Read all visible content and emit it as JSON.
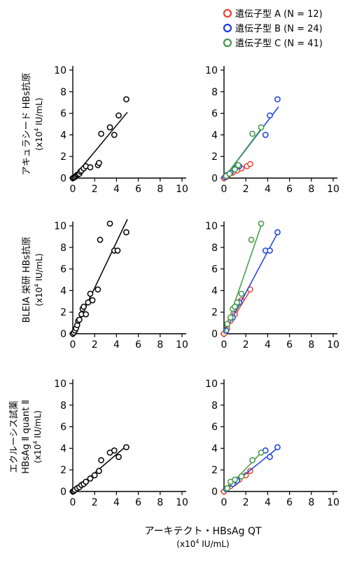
{
  "legend": {
    "placement": "top-right",
    "entries": [
      {
        "label": "遺伝子型 A (N = 12)",
        "color": "#e8432c"
      },
      {
        "label": "遺伝子型 B (N = 24)",
        "color": "#1a3fe0"
      },
      {
        "label": "遺伝子型 C (N = 41)",
        "color": "#3e9a45"
      }
    ]
  },
  "x_axis_label": {
    "line1": "アーキテクト・HBsAg QT",
    "line2": "(x10",
    "sup": "4",
    "line2_tail": " IU/mL)"
  },
  "rows": [
    {
      "ylabel_lines": [
        "アキュラシード HBs抗原"
      ],
      "ylabel_unit": {
        "pre": "(x10",
        "sup": "4",
        "post": " IU/mL)"
      }
    },
    {
      "ylabel_lines": [
        "BLEIA 栄研 HBs抗原"
      ],
      "ylabel_unit": {
        "pre": "(x10",
        "sup": "4",
        "post": " IU/mL)"
      }
    },
    {
      "ylabel_lines": [
        "エクルーシス試薬",
        "HBsAg Ⅱ quant Ⅱ"
      ],
      "ylabel_unit": {
        "pre": "(x10",
        "sup": "4",
        "post": " IU/mL)"
      }
    }
  ],
  "chart_data": [
    {
      "type": "scatter",
      "row": 1,
      "col": 1,
      "xlim": [
        0,
        10
      ],
      "ylim": [
        0,
        10
      ],
      "xticks": [
        0,
        2,
        4,
        6,
        8,
        10
      ],
      "yticks": [
        0,
        2,
        4,
        6,
        8,
        10
      ],
      "color": "#000000",
      "points": [
        [
          0,
          0
        ],
        [
          0.1,
          0.05
        ],
        [
          0.2,
          0.1
        ],
        [
          0.3,
          0.2
        ],
        [
          0.4,
          0.3
        ],
        [
          0.5,
          0.35
        ],
        [
          0.6,
          0.4
        ],
        [
          0.7,
          0.6
        ],
        [
          0.8,
          0.7
        ],
        [
          1.0,
          0.9
        ],
        [
          1.2,
          1.1
        ],
        [
          1.6,
          1.0
        ],
        [
          2.3,
          1.2
        ],
        [
          2.4,
          1.4
        ],
        [
          2.6,
          4.1
        ],
        [
          3.4,
          4.7
        ],
        [
          3.8,
          4.0
        ],
        [
          4.2,
          5.8
        ],
        [
          4.9,
          7.3
        ]
      ],
      "fit_lines": [
        {
          "x": [
            0,
            5
          ],
          "y": [
            0,
            6.1
          ],
          "color": "#000000"
        }
      ]
    },
    {
      "type": "scatter",
      "row": 1,
      "col": 2,
      "xlim": [
        0,
        10
      ],
      "ylim": [
        0,
        10
      ],
      "xticks": [
        0,
        2,
        4,
        6,
        8,
        10
      ],
      "yticks": [
        0,
        2,
        4,
        6,
        8,
        10
      ],
      "series": [
        {
          "name": "遺伝子型 A",
          "color": "#e8432c",
          "points": [
            [
              0,
              0
            ],
            [
              0.2,
              0.1
            ],
            [
              0.4,
              0.3
            ],
            [
              0.8,
              0.5
            ],
            [
              1.2,
              0.7
            ],
            [
              1.6,
              0.9
            ],
            [
              2.1,
              1.1
            ],
            [
              2.4,
              1.3
            ]
          ],
          "fit": {
            "x": [
              0,
              2.5
            ],
            "y": [
              0,
              1.3
            ]
          }
        },
        {
          "name": "遺伝子型 B",
          "color": "#1a3fe0",
          "points": [
            [
              0.1,
              0.1
            ],
            [
              0.3,
              0.3
            ],
            [
              0.6,
              0.5
            ],
            [
              1.0,
              0.9
            ],
            [
              1.4,
              1.1
            ],
            [
              3.8,
              4.0
            ],
            [
              4.2,
              5.8
            ],
            [
              4.9,
              7.3
            ]
          ],
          "fit": {
            "x": [
              0,
              5
            ],
            "y": [
              0,
              6.6
            ]
          }
        },
        {
          "name": "遺伝子型 C",
          "color": "#3e9a45",
          "points": [
            [
              0.2,
              0.2
            ],
            [
              0.5,
              0.4
            ],
            [
              1.0,
              0.8
            ],
            [
              1.3,
              1.2
            ],
            [
              2.6,
              4.1
            ],
            [
              3.4,
              4.7
            ]
          ],
          "fit": {
            "x": [
              0,
              3.5
            ],
            "y": [
              0,
              4.7
            ]
          }
        }
      ]
    },
    {
      "type": "scatter",
      "row": 2,
      "col": 1,
      "xlim": [
        0,
        10
      ],
      "ylim": [
        0,
        10
      ],
      "xticks": [
        0,
        2,
        4,
        6,
        8,
        10
      ],
      "yticks": [
        0,
        2,
        4,
        6,
        8,
        10
      ],
      "color": "#000000",
      "points": [
        [
          0,
          0
        ],
        [
          0.1,
          0.1
        ],
        [
          0.2,
          0.3
        ],
        [
          0.3,
          0.5
        ],
        [
          0.4,
          0.8
        ],
        [
          0.5,
          1.2
        ],
        [
          0.6,
          1.3
        ],
        [
          0.8,
          1.8
        ],
        [
          0.9,
          2.3
        ],
        [
          1.0,
          2.5
        ],
        [
          1.2,
          1.8
        ],
        [
          1.4,
          2.9
        ],
        [
          1.6,
          3.7
        ],
        [
          1.8,
          3.1
        ],
        [
          2.3,
          4.1
        ],
        [
          2.5,
          8.7
        ],
        [
          3.4,
          10.2
        ],
        [
          3.8,
          7.7
        ],
        [
          4.1,
          7.7
        ],
        [
          4.9,
          9.4
        ]
      ],
      "fit_lines": [
        {
          "x": [
            0,
            5
          ],
          "y": [
            0,
            10.6
          ],
          "color": "#000000"
        }
      ]
    },
    {
      "type": "scatter",
      "row": 2,
      "col": 2,
      "xlim": [
        0,
        10
      ],
      "ylim": [
        0,
        10
      ],
      "xticks": [
        0,
        2,
        4,
        6,
        8,
        10
      ],
      "yticks": [
        0,
        2,
        4,
        6,
        8,
        10
      ],
      "series": [
        {
          "name": "遺伝子型 A",
          "color": "#e8432c",
          "points": [
            [
              0,
              0
            ],
            [
              0.3,
              0.5
            ],
            [
              0.6,
              1.2
            ],
            [
              1.0,
              1.8
            ],
            [
              1.6,
              3.1
            ],
            [
              2.4,
              4.1
            ]
          ],
          "fit": {
            "x": [
              0,
              2.5
            ],
            "y": [
              0,
              4.2
            ]
          }
        },
        {
          "name": "遺伝子型 B",
          "color": "#1a3fe0",
          "points": [
            [
              0.2,
              0.3
            ],
            [
              0.8,
              1.5
            ],
            [
              1.4,
              2.9
            ],
            [
              3.8,
              7.7
            ],
            [
              4.2,
              7.7
            ],
            [
              4.9,
              9.4
            ]
          ],
          "fit": {
            "x": [
              0,
              5
            ],
            "y": [
              0,
              9.5
            ]
          }
        },
        {
          "name": "遺伝子型 C",
          "color": "#3e9a45",
          "points": [
            [
              0.3,
              0.9
            ],
            [
              0.6,
              1.5
            ],
            [
              0.8,
              2.3
            ],
            [
              1.0,
              2.5
            ],
            [
              1.2,
              2.9
            ],
            [
              1.6,
              3.7
            ],
            [
              2.5,
              8.7
            ],
            [
              3.4,
              10.2
            ]
          ],
          "fit": {
            "x": [
              0,
              3.5
            ],
            "y": [
              0,
              10.3
            ]
          }
        }
      ]
    },
    {
      "type": "scatter",
      "row": 3,
      "col": 1,
      "xlim": [
        0,
        10
      ],
      "ylim": [
        0,
        10
      ],
      "xticks": [
        0,
        2,
        4,
        6,
        8,
        10
      ],
      "yticks": [
        0,
        2,
        4,
        6,
        8,
        10
      ],
      "color": "#000000",
      "points": [
        [
          0,
          0
        ],
        [
          0.1,
          0.05
        ],
        [
          0.2,
          0.15
        ],
        [
          0.4,
          0.3
        ],
        [
          0.6,
          0.4
        ],
        [
          0.8,
          0.6
        ],
        [
          1.0,
          0.7
        ],
        [
          1.2,
          0.9
        ],
        [
          1.6,
          1.2
        ],
        [
          2.0,
          1.5
        ],
        [
          2.4,
          1.9
        ],
        [
          2.6,
          2.9
        ],
        [
          3.4,
          3.6
        ],
        [
          3.8,
          3.8
        ],
        [
          4.2,
          3.2
        ],
        [
          4.9,
          4.1
        ]
      ],
      "fit_lines": [
        {
          "x": [
            0,
            5
          ],
          "y": [
            0,
            4.3
          ],
          "color": "#000000"
        }
      ]
    },
    {
      "type": "scatter",
      "row": 3,
      "col": 2,
      "xlim": [
        0,
        10
      ],
      "ylim": [
        0,
        10
      ],
      "xticks": [
        0,
        2,
        4,
        6,
        8,
        10
      ],
      "yticks": [
        0,
        2,
        4,
        6,
        8,
        10
      ],
      "series": [
        {
          "name": "遺伝子型 A",
          "color": "#e8432c",
          "points": [
            [
              0,
              0
            ],
            [
              0.3,
              0.3
            ],
            [
              0.6,
              0.5
            ],
            [
              1.0,
              0.8
            ],
            [
              1.4,
              1.1
            ],
            [
              2.0,
              1.5
            ],
            [
              2.4,
              1.9
            ]
          ],
          "fit": {
            "x": [
              0,
              2.5
            ],
            "y": [
              0,
              1.9
            ]
          }
        },
        {
          "name": "遺伝子型 B",
          "color": "#1a3fe0",
          "points": [
            [
              0.2,
              0.2
            ],
            [
              0.8,
              0.7
            ],
            [
              1.2,
              1.0
            ],
            [
              3.8,
              3.8
            ],
            [
              4.2,
              3.2
            ],
            [
              4.9,
              4.1
            ]
          ],
          "fit": {
            "x": [
              0,
              5
            ],
            "y": [
              0,
              4.1
            ]
          }
        },
        {
          "name": "遺伝子型 C",
          "color": "#3e9a45",
          "points": [
            [
              0.3,
              0.3
            ],
            [
              0.6,
              0.9
            ],
            [
              1.0,
              1.1
            ],
            [
              1.6,
              1.4
            ],
            [
              2.6,
              2.9
            ],
            [
              3.4,
              3.6
            ]
          ],
          "fit": {
            "x": [
              0,
              3.5
            ],
            "y": [
              0,
              3.7
            ]
          }
        }
      ]
    }
  ]
}
